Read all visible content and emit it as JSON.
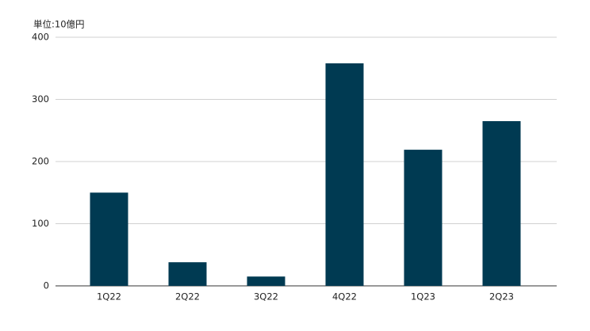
{
  "chart_data": {
    "type": "bar",
    "unit_label": "単位:10億円",
    "categories": [
      "1Q22",
      "2Q22",
      "3Q22",
      "4Q22",
      "1Q23",
      "2Q23"
    ],
    "values": [
      150,
      38,
      15,
      358,
      219,
      265
    ],
    "color": "#003a52",
    "ylim": [
      0,
      400
    ],
    "yticks": [
      0,
      100,
      200,
      300,
      400
    ],
    "grid": true
  }
}
